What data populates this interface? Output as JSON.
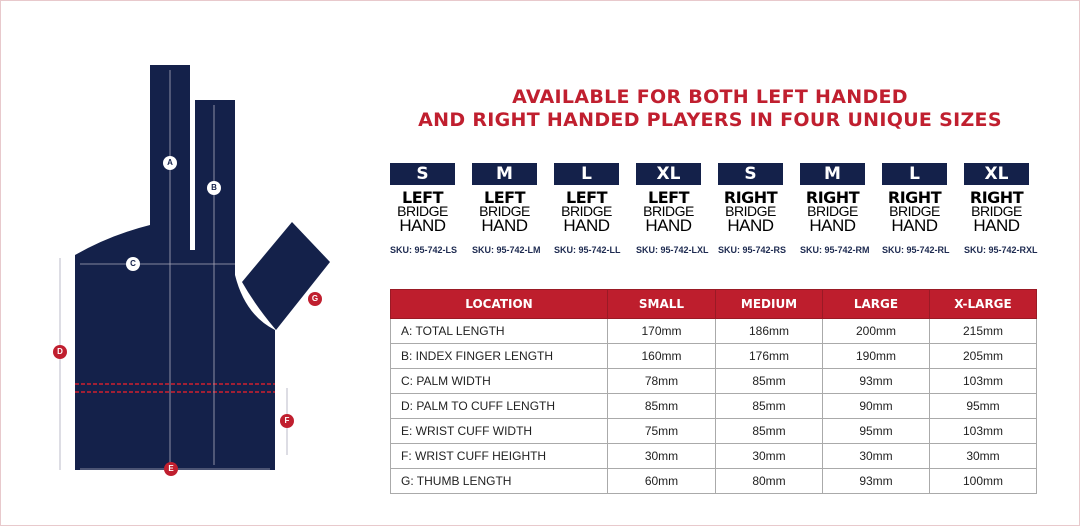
{
  "headline": {
    "line1": "AVAILABLE FOR BOTH LEFT HANDED",
    "line2": "AND RIGHT HANDED PLAYERS IN FOUR UNIQUE SIZES"
  },
  "colors": {
    "navy": "#14214a",
    "red": "#be1e2d"
  },
  "diagram": {
    "labels": [
      "A",
      "B",
      "C",
      "D",
      "E",
      "F",
      "G"
    ]
  },
  "products": [
    {
      "size": "S",
      "hand": "LEFT",
      "line2": "BRIDGE",
      "line3": "HAND",
      "sku": "SKU: 95-742-LS"
    },
    {
      "size": "M",
      "hand": "LEFT",
      "line2": "BRIDGE",
      "line3": "HAND",
      "sku": "SKU: 95-742-LM"
    },
    {
      "size": "L",
      "hand": "LEFT",
      "line2": "BRIDGE",
      "line3": "HAND",
      "sku": "SKU: 95-742-LL"
    },
    {
      "size": "XL",
      "hand": "LEFT",
      "line2": "BRIDGE",
      "line3": "HAND",
      "sku": "SKU: 95-742-LXL"
    },
    {
      "size": "S",
      "hand": "RIGHT",
      "line2": "BRIDGE",
      "line3": "HAND",
      "sku": "SKU: 95-742-RS"
    },
    {
      "size": "M",
      "hand": "RIGHT",
      "line2": "BRIDGE",
      "line3": "HAND",
      "sku": "SKU: 95-742-RM"
    },
    {
      "size": "L",
      "hand": "RIGHT",
      "line2": "BRIDGE",
      "line3": "HAND",
      "sku": "SKU: 95-742-RL"
    },
    {
      "size": "XL",
      "hand": "RIGHT",
      "line2": "BRIDGE",
      "line3": "HAND",
      "sku": "SKU: 95-742-RXL"
    }
  ],
  "table": {
    "headers": [
      "LOCATION",
      "SMALL",
      "MEDIUM",
      "LARGE",
      "X-LARGE"
    ],
    "rows": [
      [
        "A:  TOTAL LENGTH",
        "170mm",
        "186mm",
        "200mm",
        "215mm"
      ],
      [
        "B:  INDEX FINGER LENGTH",
        "160mm",
        "176mm",
        "190mm",
        "205mm"
      ],
      [
        "C:  PALM WIDTH",
        "78mm",
        "85mm",
        "93mm",
        "103mm"
      ],
      [
        "D:  PALM TO CUFF LENGTH",
        "85mm",
        "85mm",
        "90mm",
        "95mm"
      ],
      [
        "E:  WRIST CUFF WIDTH",
        "75mm",
        "85mm",
        "95mm",
        "103mm"
      ],
      [
        "F:  WRIST CUFF HEIGHTH",
        "30mm",
        "30mm",
        "30mm",
        "30mm"
      ],
      [
        "G:  THUMB LENGTH",
        "60mm",
        "80mm",
        "93mm",
        "100mm"
      ]
    ]
  }
}
